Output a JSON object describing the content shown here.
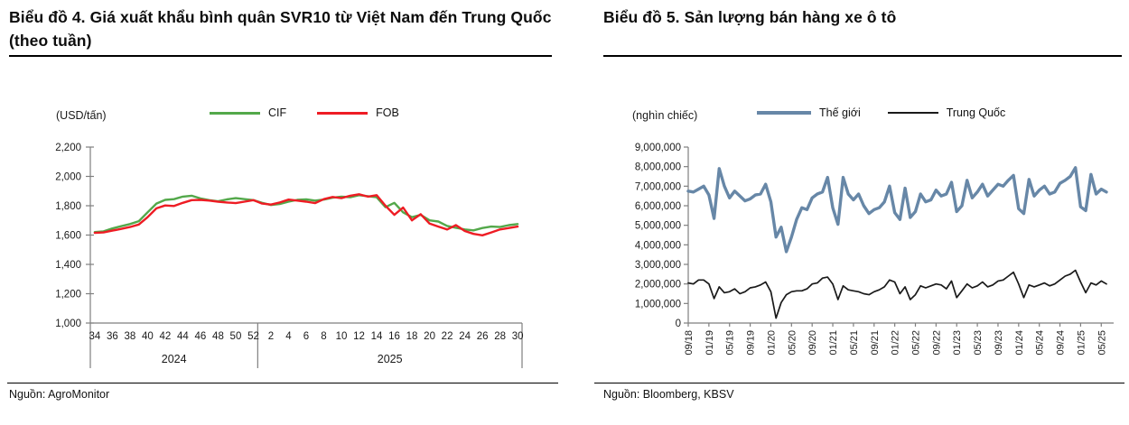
{
  "page": {
    "background": "#ffffff"
  },
  "left_panel": {
    "title": "Biểu đồ 4. Giá xuất khẩu bình quân SVR10 từ Việt Nam đến Trung Quốc (theo tuần)",
    "source": "Nguồn: AgroMonitor"
  },
  "right_panel": {
    "title": "Biểu đồ 5. Sản lượng bán hàng xe ô tô",
    "source": "Nguồn: Bloomberg, KBSV"
  },
  "chart_data": [
    {
      "type": "line",
      "title": "Giá xuất khẩu bình quân SVR10 từ Việt Nam đến Trung Quốc (theo tuần)",
      "unit": "(USD/tấn)",
      "ylim": [
        1000,
        2200
      ],
      "y_ticks": [
        1000,
        1200,
        1400,
        1600,
        1800,
        2000,
        2200
      ],
      "grid": false,
      "legend_position": "top",
      "x_axis": {
        "group_labels": [
          "2024",
          "2025"
        ],
        "group_sizes": [
          19,
          30
        ],
        "labeled_every": 2,
        "weeks": [
          "34",
          "35",
          "36",
          "37",
          "38",
          "39",
          "40",
          "41",
          "42",
          "43",
          "44",
          "45",
          "46",
          "47",
          "48",
          "49",
          "50",
          "51",
          "52",
          "1",
          "2",
          "3",
          "4",
          "5",
          "6",
          "7",
          "8",
          "9",
          "10",
          "11",
          "12",
          "13",
          "14",
          "15",
          "16",
          "17",
          "18",
          "19",
          "20",
          "21",
          "22",
          "23",
          "24",
          "25",
          "26",
          "27",
          "28",
          "29",
          "30"
        ]
      },
      "series": [
        {
          "name": "CIF",
          "color": "#53a84a",
          "values": [
            1620,
            1625,
            1645,
            1660,
            1675,
            1695,
            1755,
            1815,
            1840,
            1845,
            1862,
            1868,
            1850,
            1838,
            1830,
            1843,
            1852,
            1845,
            1838,
            1820,
            1805,
            1812,
            1828,
            1840,
            1843,
            1835,
            1842,
            1855,
            1862,
            1858,
            1872,
            1865,
            1858,
            1790,
            1820,
            1755,
            1722,
            1738,
            1700,
            1692,
            1662,
            1650,
            1638,
            1632,
            1648,
            1658,
            1655,
            1668,
            1675
          ]
        },
        {
          "name": "FOB",
          "color": "#ee1c24",
          "values": [
            1615,
            1618,
            1630,
            1642,
            1655,
            1672,
            1722,
            1782,
            1802,
            1798,
            1820,
            1838,
            1840,
            1835,
            1828,
            1822,
            1818,
            1828,
            1838,
            1815,
            1808,
            1822,
            1842,
            1835,
            1828,
            1818,
            1845,
            1860,
            1852,
            1868,
            1878,
            1862,
            1872,
            1800,
            1738,
            1788,
            1700,
            1742,
            1678,
            1658,
            1638,
            1668,
            1628,
            1608,
            1598,
            1618,
            1638,
            1648,
            1658
          ]
        }
      ]
    },
    {
      "type": "line",
      "title": "Sản lượng bán hàng xe ô tô",
      "unit": "(nghìn chiếc)",
      "ylim": [
        0,
        9000000
      ],
      "y_ticks": [
        0,
        1000000,
        2000000,
        3000000,
        4000000,
        5000000,
        6000000,
        7000000,
        8000000,
        9000000
      ],
      "grid": false,
      "legend_position": "top",
      "x_labeled_every": 4,
      "x": [
        "09/18",
        "10/18",
        "11/18",
        "12/18",
        "01/19",
        "02/19",
        "03/19",
        "04/19",
        "05/19",
        "06/19",
        "07/19",
        "08/19",
        "09/19",
        "10/19",
        "11/19",
        "12/19",
        "01/20",
        "02/20",
        "03/20",
        "04/20",
        "05/20",
        "06/20",
        "07/20",
        "08/20",
        "09/20",
        "10/20",
        "11/20",
        "12/20",
        "01/21",
        "02/21",
        "03/21",
        "04/21",
        "05/21",
        "06/21",
        "07/21",
        "08/21",
        "09/21",
        "10/21",
        "11/21",
        "12/21",
        "01/22",
        "02/22",
        "03/22",
        "04/22",
        "05/22",
        "06/22",
        "07/22",
        "08/22",
        "09/22",
        "10/22",
        "11/22",
        "12/22",
        "01/23",
        "02/23",
        "03/23",
        "04/23",
        "05/23",
        "06/23",
        "07/23",
        "08/23",
        "09/23",
        "10/23",
        "11/23",
        "12/23",
        "01/24",
        "02/24",
        "03/24",
        "04/24",
        "05/24",
        "06/24",
        "07/24",
        "08/24",
        "09/24",
        "10/24",
        "11/24",
        "12/24",
        "01/25",
        "02/25",
        "03/25",
        "04/25",
        "05/25",
        "06/25"
      ],
      "series": [
        {
          "name": "Thế giới",
          "color": "#6787a7",
          "values": [
            6750000,
            6700000,
            6850000,
            7000000,
            6550000,
            5350000,
            7900000,
            7000000,
            6400000,
            6750000,
            6500000,
            6250000,
            6350000,
            6550000,
            6600000,
            7100000,
            6200000,
            4400000,
            4900000,
            3650000,
            4400000,
            5300000,
            5900000,
            5800000,
            6400000,
            6600000,
            6700000,
            7450000,
            5900000,
            5050000,
            7450000,
            6600000,
            6300000,
            6600000,
            6000000,
            5600000,
            5800000,
            5900000,
            6200000,
            7000000,
            5650000,
            5300000,
            6900000,
            5400000,
            5700000,
            6600000,
            6200000,
            6300000,
            6800000,
            6500000,
            6600000,
            7200000,
            5700000,
            6000000,
            7300000,
            6400000,
            6700000,
            7100000,
            6500000,
            6800000,
            7100000,
            7000000,
            7300000,
            7550000,
            5850000,
            5600000,
            7350000,
            6500000,
            6800000,
            7000000,
            6600000,
            6700000,
            7150000,
            7300000,
            7500000,
            7950000,
            5950000,
            5750000,
            7600000,
            6600000,
            6850000,
            6700000
          ]
        },
        {
          "name": "Trung Quốc",
          "color": "#1a1a1a",
          "values": [
            2050000,
            2000000,
            2200000,
            2200000,
            2000000,
            1250000,
            1850000,
            1550000,
            1600000,
            1750000,
            1500000,
            1600000,
            1800000,
            1850000,
            1950000,
            2100000,
            1600000,
            250000,
            1050000,
            1450000,
            1600000,
            1650000,
            1650000,
            1750000,
            2000000,
            2050000,
            2300000,
            2350000,
            2000000,
            1200000,
            1900000,
            1700000,
            1650000,
            1600000,
            1500000,
            1450000,
            1600000,
            1700000,
            1850000,
            2200000,
            2100000,
            1500000,
            1850000,
            1200000,
            1450000,
            1900000,
            1800000,
            1900000,
            2000000,
            1950000,
            1750000,
            2150000,
            1300000,
            1650000,
            2000000,
            1800000,
            1900000,
            2100000,
            1850000,
            1950000,
            2150000,
            2200000,
            2400000,
            2600000,
            2000000,
            1300000,
            1950000,
            1850000,
            1950000,
            2050000,
            1900000,
            2000000,
            2200000,
            2400000,
            2500000,
            2700000,
            2100000,
            1550000,
            2050000,
            1950000,
            2150000,
            2000000
          ]
        }
      ]
    }
  ]
}
